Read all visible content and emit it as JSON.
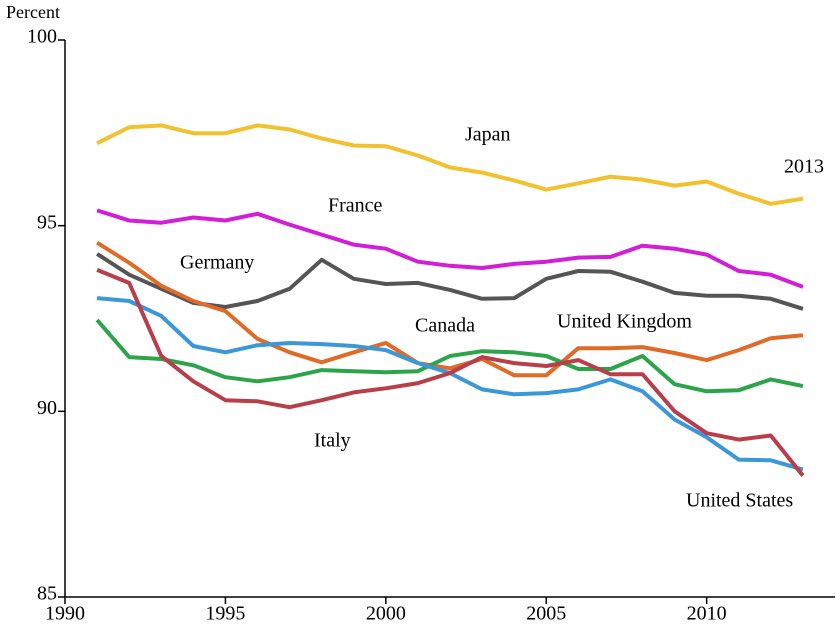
{
  "chart_data": {
    "type": "line",
    "y_label": "Percent",
    "annotations": [
      "2013"
    ],
    "x": [
      1991,
      1992,
      1993,
      1994,
      1995,
      1996,
      1997,
      1998,
      1999,
      2000,
      2001,
      2002,
      2003,
      2004,
      2005,
      2006,
      2007,
      2008,
      2009,
      2010,
      2011,
      2012,
      2013
    ],
    "xlim": [
      1990,
      2014
    ],
    "xticks": [
      1990,
      1995,
      2000,
      2005,
      2010
    ],
    "ylim": [
      85,
      100
    ],
    "yticks": [
      85,
      90,
      95,
      100
    ],
    "grid": false,
    "series": [
      {
        "name": "Japan",
        "color": "#f2c12e",
        "values": [
          97.22,
          97.65,
          97.7,
          97.49,
          97.49,
          97.7,
          97.59,
          97.35,
          97.16,
          97.14,
          96.89,
          96.57,
          96.43,
          96.22,
          95.97,
          96.14,
          96.32,
          96.24,
          96.08,
          96.19,
          95.86,
          95.59,
          95.73
        ]
      },
      {
        "name": "France",
        "color": "#d21ed6",
        "values": [
          95.41,
          95.14,
          95.08,
          95.22,
          95.14,
          95.32,
          95.03,
          94.76,
          94.49,
          94.38,
          94.03,
          93.92,
          93.86,
          93.97,
          94.03,
          94.14,
          94.16,
          94.46,
          94.38,
          94.22,
          93.78,
          93.68,
          93.35
        ]
      },
      {
        "name": "Germany",
        "color": "#555555",
        "values": [
          94.24,
          93.68,
          93.3,
          92.92,
          92.81,
          92.97,
          93.3,
          94.08,
          93.57,
          93.43,
          93.46,
          93.27,
          93.03,
          93.05,
          93.57,
          93.78,
          93.76,
          93.49,
          93.19,
          93.11,
          93.11,
          93.03,
          92.76
        ]
      },
      {
        "name": "United Kingdom",
        "color": "#e06a26",
        "values": [
          94.54,
          94.0,
          93.38,
          92.97,
          92.7,
          91.95,
          91.59,
          91.32,
          91.59,
          91.84,
          91.3,
          91.16,
          91.41,
          90.97,
          90.97,
          91.7,
          91.7,
          91.73,
          91.57,
          91.38,
          91.65,
          91.97,
          92.05
        ]
      },
      {
        "name": "Canada",
        "color": "#2ca44a",
        "values": [
          92.46,
          91.46,
          91.41,
          91.24,
          90.92,
          90.81,
          90.92,
          91.11,
          91.08,
          91.05,
          91.08,
          91.49,
          91.62,
          91.59,
          91.49,
          91.14,
          91.14,
          91.49,
          90.73,
          90.54,
          90.57,
          90.86,
          90.68
        ]
      },
      {
        "name": "United States",
        "color": "#3a97d8",
        "values": [
          93.05,
          92.97,
          92.57,
          91.76,
          91.59,
          91.78,
          91.84,
          91.81,
          91.76,
          91.65,
          91.3,
          91.03,
          90.59,
          90.46,
          90.49,
          90.59,
          90.86,
          90.54,
          89.78,
          89.3,
          88.7,
          88.68,
          88.43
        ]
      },
      {
        "name": "Italy",
        "color": "#b83e4a",
        "values": [
          93.81,
          93.46,
          91.49,
          90.81,
          90.3,
          90.27,
          90.11,
          90.3,
          90.51,
          90.62,
          90.76,
          91.03,
          91.46,
          91.3,
          91.22,
          91.38,
          91.0,
          91.0,
          90.0,
          89.41,
          89.24,
          89.35,
          88.27
        ]
      }
    ]
  }
}
